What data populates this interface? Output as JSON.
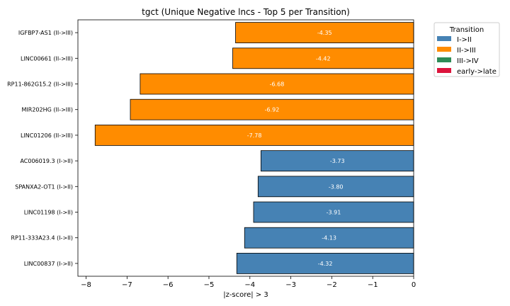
{
  "chart_data": {
    "type": "bar",
    "orientation": "horizontal",
    "title": "tgct (Unique Negative lncs - Top 5 per Transition)",
    "xlabel": "|z-score| > 3",
    "ylabel": "",
    "xlim": [
      -8.2,
      0
    ],
    "xticks": [
      -8,
      -7,
      -6,
      -5,
      -4,
      -3,
      -2,
      -1,
      0
    ],
    "grid": false,
    "legend": {
      "title": "Transition",
      "placement": "outside-top-right",
      "entries": [
        {
          "label": "I->II",
          "color": "#4682b4"
        },
        {
          "label": "II->III",
          "color": "#ff8c00"
        },
        {
          "label": "III->IV",
          "color": "#2e8b57"
        },
        {
          "label": "early->late",
          "color": "#dc143c"
        }
      ]
    },
    "bars": [
      {
        "label": "IGFBP7-AS1 (II->III)",
        "value": -4.35,
        "value_label": "-4.35",
        "transition": "II->III"
      },
      {
        "label": "LINC00661 (II->III)",
        "value": -4.42,
        "value_label": "-4.42",
        "transition": "II->III"
      },
      {
        "label": "RP11-862G15.2 (II->III)",
        "value": -6.68,
        "value_label": "-6.68",
        "transition": "II->III"
      },
      {
        "label": "MIR202HG (II->III)",
        "value": -6.92,
        "value_label": "-6.92",
        "transition": "II->III"
      },
      {
        "label": "LINC01206 (II->III)",
        "value": -7.78,
        "value_label": "-7.78",
        "transition": "II->III"
      },
      {
        "label": "AC006019.3 (I->II)",
        "value": -3.73,
        "value_label": "-3.73",
        "transition": "I->II"
      },
      {
        "label": "SPANXA2-OT1 (I->II)",
        "value": -3.8,
        "value_label": "-3.80",
        "transition": "I->II"
      },
      {
        "label": "LINC01198 (I->II)",
        "value": -3.91,
        "value_label": "-3.91",
        "transition": "I->II"
      },
      {
        "label": "RP11-333A23.4 (I->II)",
        "value": -4.13,
        "value_label": "-4.13",
        "transition": "I->II"
      },
      {
        "label": "LINC00837 (I->II)",
        "value": -4.32,
        "value_label": "-4.32",
        "transition": "I->II"
      }
    ]
  }
}
